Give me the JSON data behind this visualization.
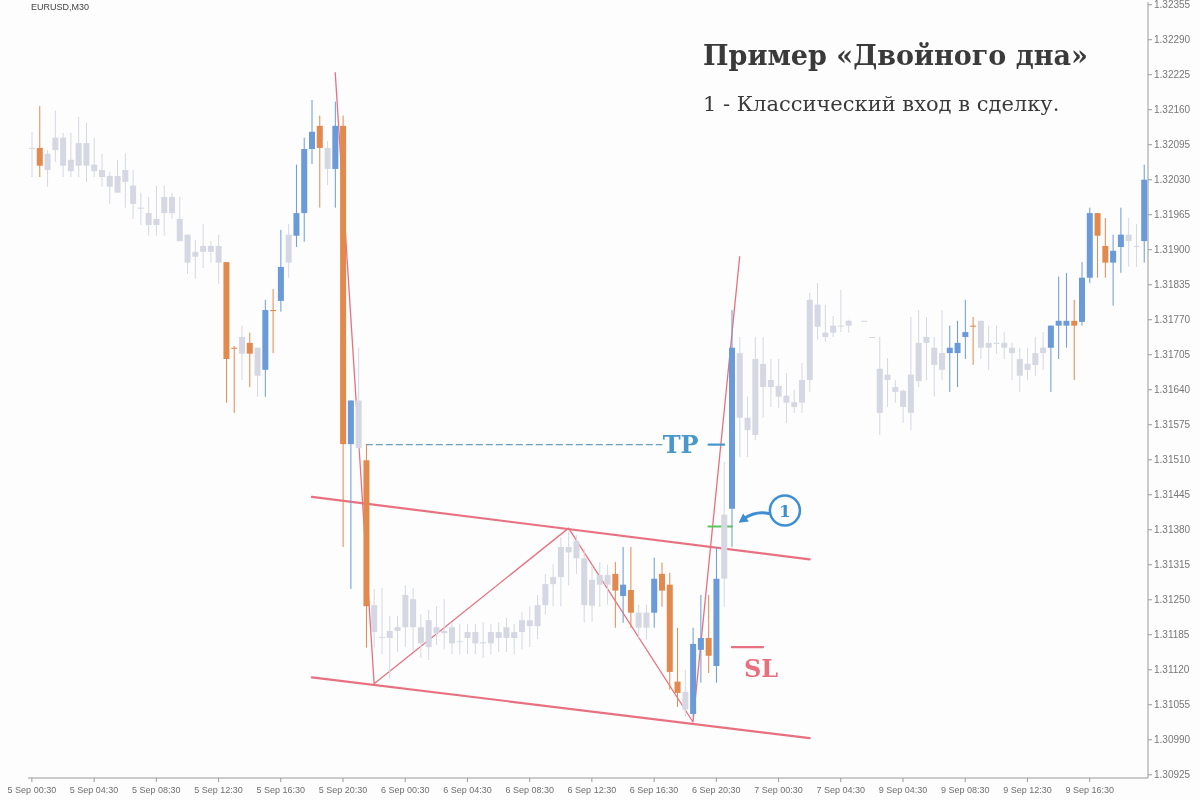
{
  "chart_data": {
    "type": "candlestick",
    "title": "Пример «Двойного дна»",
    "subtitle": "1 - Классический вход в сделку.",
    "categories": [
      "5 Sep 00:30",
      null,
      null,
      null,
      null,
      null,
      null,
      null,
      "5 Sep 04:30",
      null,
      null,
      null,
      null,
      null,
      null,
      null,
      "5 Sep 08:30",
      null,
      null,
      null,
      null,
      null,
      null,
      null,
      "5 Sep 12:30",
      null,
      null,
      null,
      null,
      null,
      null,
      null,
      "5 Sep 16:30",
      null,
      null,
      null,
      null,
      null,
      null,
      null,
      "5 Sep 20:30",
      null,
      null,
      null,
      null,
      null,
      null,
      null,
      "6 Sep 00:30",
      null,
      null,
      null,
      null,
      null,
      null,
      null,
      "6 Sep 04:30",
      null,
      null,
      null,
      null,
      null,
      null,
      null,
      "6 Sep 08:30",
      null,
      null,
      null,
      null,
      null,
      null,
      null,
      "6 Sep 12:30",
      null,
      null,
      null,
      null,
      null,
      null,
      null,
      "6 Sep 16:30",
      null,
      null,
      null,
      null,
      null,
      null,
      null,
      "6 Sep 20:30",
      null,
      null,
      null,
      null,
      null,
      null,
      null,
      "7 Sep 00:30",
      null,
      null,
      null,
      null,
      null,
      null,
      null,
      "7 Sep 04:30",
      null,
      null,
      null,
      null,
      null,
      null,
      null,
      "9 Sep 04:30",
      null,
      null,
      null,
      null,
      null,
      null,
      null,
      "9 Sep 08:30",
      null,
      null,
      null,
      null,
      null,
      null,
      null,
      "9 Sep 12:30",
      null,
      null,
      null,
      null,
      null,
      null,
      null,
      "9 Sep 16:30",
      null,
      null,
      null,
      null,
      null,
      null,
      null
    ],
    "ohlc": [
      [
        1.32089,
        1.32119,
        1.32035,
        1.32087
      ],
      [
        1.32089,
        1.32167,
        1.32035,
        1.32056
      ],
      [
        1.32078,
        1.32085,
        1.32017,
        1.32048
      ],
      [
        1.32108,
        1.32158,
        1.32063,
        1.32085
      ],
      [
        1.32108,
        1.32117,
        1.32035,
        1.32056
      ],
      [
        1.32067,
        1.32117,
        1.32035,
        1.32046
      ],
      [
        1.32098,
        1.32147,
        1.32035,
        1.32056
      ],
      [
        1.32098,
        1.32136,
        1.32026,
        1.32056
      ],
      [
        1.32058,
        1.32108,
        1.32035,
        1.32046
      ],
      [
        1.32048,
        1.32078,
        1.32017,
        1.32035
      ],
      [
        1.32037,
        1.32045,
        1.31985,
        1.32017
      ],
      [
        1.32037,
        1.32067,
        1.32006,
        1.32006
      ],
      [
        1.32048,
        1.32078,
        1.31978,
        1.32026
      ],
      [
        1.32019,
        1.32048,
        1.31957,
        1.31985
      ],
      [
        1.31978,
        1.32006,
        1.31946,
        1.31978
      ],
      [
        1.31968,
        1.31998,
        1.31926,
        1.31946
      ],
      [
        1.31957,
        1.32019,
        1.31926,
        1.31946
      ],
      [
        1.31998,
        1.32019,
        1.31926,
        1.31968
      ],
      [
        1.31998,
        1.32006,
        1.31957,
        1.31968
      ],
      [
        1.31957,
        1.31998,
        1.31915,
        1.31916
      ],
      [
        1.31928,
        1.31928,
        1.31855,
        1.31876
      ],
      [
        1.31896,
        1.31918,
        1.31846,
        1.31887
      ],
      [
        1.31907,
        1.31948,
        1.31866,
        1.31896
      ],
      [
        1.31907,
        1.31916,
        1.31876,
        1.31896
      ],
      [
        1.31907,
        1.31928,
        1.31837,
        1.31876
      ],
      [
        1.31877,
        1.31877,
        1.31616,
        1.31697
      ],
      [
        1.31718,
        1.31721,
        1.31597,
        1.31716
      ],
      [
        1.31738,
        1.31759,
        1.31658,
        1.31707
      ],
      [
        1.31727,
        1.31746,
        1.31645,
        1.31707
      ],
      [
        1.31718,
        1.31718,
        1.31627,
        1.31666
      ],
      [
        1.31677,
        1.31807,
        1.31627,
        1.31788
      ],
      [
        1.31788,
        1.31827,
        1.31708,
        1.31786
      ],
      [
        1.31805,
        1.31937,
        1.31785,
        1.31868
      ],
      [
        1.31928,
        1.31948,
        1.31848,
        1.31876
      ],
      [
        1.31926,
        1.32058,
        1.31905,
        1.31968
      ],
      [
        1.31968,
        1.32108,
        1.31915,
        1.32087
      ],
      [
        1.32087,
        1.32178,
        1.32059,
        1.32119
      ],
      [
        1.3213,
        1.32149,
        1.31978,
        1.32089
      ],
      [
        1.32089,
        1.32102,
        1.3202,
        1.3205
      ],
      [
        1.3205,
        1.32175,
        1.31978,
        1.3213
      ],
      [
        1.3213,
        1.32149,
        1.31348,
        1.31539
      ],
      [
        1.31539,
        1.3162,
        1.3127,
        1.3162
      ],
      [
        1.3162,
        1.31718,
        1.31522,
        1.31532
      ],
      [
        1.31509,
        1.31539,
        1.31161,
        1.31238
      ],
      [
        1.3124,
        1.3127,
        1.31162,
        1.3119
      ],
      [
        1.31181,
        1.31272,
        1.31149,
        1.31181
      ],
      [
        1.31192,
        1.3122,
        1.31103,
        1.31179
      ],
      [
        1.31199,
        1.3122,
        1.31153,
        1.31192
      ],
      [
        1.31259,
        1.31277,
        1.31162,
        1.31199
      ],
      [
        1.31251,
        1.31272,
        1.31153,
        1.31199
      ],
      [
        1.31199,
        1.31223,
        1.31142,
        1.31169
      ],
      [
        1.31212,
        1.31231,
        1.31138,
        1.31162
      ],
      [
        1.31199,
        1.31238,
        1.31166,
        1.31188
      ],
      [
        1.31192,
        1.31251,
        1.31158,
        1.31188
      ],
      [
        1.31199,
        1.31208,
        1.31149,
        1.31169
      ],
      [
        1.31173,
        1.31205,
        1.31149,
        1.31173
      ],
      [
        1.3119,
        1.31205,
        1.31149,
        1.31179
      ],
      [
        1.3119,
        1.31205,
        1.31149,
        1.31169
      ],
      [
        1.31171,
        1.31208,
        1.31142,
        1.31171
      ],
      [
        1.3119,
        1.31205,
        1.31149,
        1.31169
      ],
      [
        1.3119,
        1.31208,
        1.31153,
        1.31179
      ],
      [
        1.31199,
        1.31216,
        1.31153,
        1.31179
      ],
      [
        1.3119,
        1.31205,
        1.31149,
        1.31179
      ],
      [
        1.31212,
        1.31227,
        1.31158,
        1.3119
      ],
      [
        1.31212,
        1.31238,
        1.31162,
        1.31201
      ],
      [
        1.3124,
        1.31259,
        1.31177,
        1.31201
      ],
      [
        1.31279,
        1.31298,
        1.31223,
        1.3124
      ],
      [
        1.31292,
        1.31316,
        1.31238,
        1.31279
      ],
      [
        1.31348,
        1.31366,
        1.31238,
        1.31292
      ],
      [
        1.31348,
        1.31377,
        1.31277,
        1.31338
      ],
      [
        1.31359,
        1.3137,
        1.31298,
        1.31327
      ],
      [
        1.31327,
        1.31344,
        1.31208,
        1.3124
      ],
      [
        1.31287,
        1.31313,
        1.31209,
        1.31239
      ],
      [
        1.31296,
        1.3132,
        1.31237,
        1.31278
      ],
      [
        1.31296,
        1.31315,
        1.31241,
        1.31278
      ],
      [
        1.31298,
        1.3132,
        1.31198,
        1.31267
      ],
      [
        1.31257,
        1.31348,
        1.31207,
        1.31278
      ],
      [
        1.31268,
        1.31348,
        1.31198,
        1.31226
      ],
      [
        1.31226,
        1.31241,
        1.31176,
        1.31198
      ],
      [
        1.31226,
        1.31241,
        1.31176,
        1.31198
      ],
      [
        1.31226,
        1.31328,
        1.31198,
        1.31289
      ],
      [
        1.31298,
        1.31319,
        1.31237,
        1.31267
      ],
      [
        1.31278,
        1.313,
        1.31083,
        1.31116
      ],
      [
        1.31098,
        1.31198,
        1.31051,
        1.31077
      ],
      [
        1.31079,
        1.3112,
        1.31033,
        1.31046
      ],
      [
        1.31038,
        1.31198,
        1.31033,
        1.31168
      ],
      [
        1.31157,
        1.31259,
        1.31096,
        1.31179
      ],
      [
        1.31179,
        1.31259,
        1.31114,
        1.31146
      ],
      [
        1.31127,
        1.31348,
        1.31096,
        1.31289
      ],
      [
        1.31408,
        1.31506,
        1.31237,
        1.31289
      ],
      [
        1.31419,
        1.31788,
        1.31348,
        1.31718
      ],
      [
        1.31708,
        1.31738,
        1.31515,
        1.31588
      ],
      [
        1.31588,
        1.31627,
        1.31515,
        1.31565
      ],
      [
        1.31697,
        1.31738,
        1.31547,
        1.31556
      ],
      [
        1.31688,
        1.31738,
        1.31588,
        1.31645
      ],
      [
        1.31658,
        1.31697,
        1.31608,
        1.31645
      ],
      [
        1.31647,
        1.31697,
        1.31606,
        1.31627
      ],
      [
        1.31629,
        1.31671,
        1.31578,
        1.31616
      ],
      [
        1.31617,
        1.3164,
        1.31597,
        1.31608
      ],
      [
        1.31658,
        1.3169,
        1.31597,
        1.31616
      ],
      [
        1.31807,
        1.3182,
        1.31636,
        1.31658
      ],
      [
        1.31798,
        1.31838,
        1.31733,
        1.31757
      ],
      [
        1.31746,
        1.31798,
        1.31729,
        1.31738
      ],
      [
        1.31759,
        1.31777,
        1.31738,
        1.31746
      ],
      [
        1.31759,
        1.31825,
        1.31747,
        1.31759
      ],
      [
        1.31768,
        1.3177,
        1.31746,
        1.31759
      ],
      null,
      [
        1.31768,
        1.31768,
        1.31768,
        1.31768
      ],
      [
        1.31738,
        1.31738,
        1.31738,
        1.31738
      ],
      [
        1.31679,
        1.31738,
        1.31556,
        1.31597
      ],
      [
        1.31668,
        1.31699,
        1.31608,
        1.31658
      ],
      [
        1.31645,
        1.31658,
        1.31616,
        1.31636
      ],
      [
        1.31638,
        1.3164,
        1.31578,
        1.31608
      ],
      [
        1.31668,
        1.31775,
        1.31565,
        1.31597
      ],
      [
        1.31727,
        1.31788,
        1.31645,
        1.31656
      ],
      [
        1.31738,
        1.31775,
        1.31658,
        1.31727
      ],
      [
        1.31718,
        1.31738,
        1.31627,
        1.31686
      ],
      [
        1.31708,
        1.31788,
        1.31658,
        1.31677
      ],
      [
        1.31708,
        1.31759,
        1.31636,
        1.31718
      ],
      [
        1.31708,
        1.31768,
        1.31645,
        1.31727
      ],
      [
        1.31738,
        1.31807,
        1.31697,
        1.31747
      ],
      [
        1.31759,
        1.31775,
        1.31686,
        1.31757
      ],
      [
        1.31768,
        1.31768,
        1.31697,
        1.31718
      ],
      [
        1.31727,
        1.31759,
        1.31677,
        1.31718
      ],
      [
        1.31727,
        1.31759,
        1.31707,
        1.31727
      ],
      [
        1.31727,
        1.31747,
        1.31697,
        1.31718
      ],
      [
        1.31718,
        1.31727,
        1.31658,
        1.31708
      ],
      [
        1.31697,
        1.31718,
        1.31636,
        1.31666
      ],
      [
        1.31688,
        1.31718,
        1.31658,
        1.31677
      ],
      [
        1.31708,
        1.31738,
        1.31666,
        1.31686
      ],
      [
        1.31718,
        1.31747,
        1.31677,
        1.31708
      ],
      [
        1.31718,
        1.31759,
        1.31636,
        1.31759
      ],
      [
        1.31759,
        1.3185,
        1.31697,
        1.31768
      ],
      [
        1.31759,
        1.31857,
        1.31718,
        1.31768
      ],
      [
        1.31768,
        1.31807,
        1.31658,
        1.31759
      ],
      [
        1.31766,
        1.31877,
        1.31759,
        1.31848
      ],
      [
        1.31848,
        1.31978,
        1.31838,
        1.31968
      ],
      [
        1.31968,
        1.31968,
        1.31848,
        1.31926
      ],
      [
        1.31907,
        1.31959,
        1.31848,
        1.31876
      ],
      [
        1.31876,
        1.31928,
        1.31796,
        1.31898
      ],
      [
        1.31905,
        1.31978,
        1.31857,
        1.31928
      ],
      [
        1.31928,
        1.31959,
        1.31868,
        1.31916
      ],
      [
        1.31907,
        1.31948,
        1.31868,
        1.31907
      ],
      [
        1.31916,
        1.32058,
        1.31876,
        1.3203
      ]
    ],
    "colors": [
      "#d5d8e2",
      "#e2894e",
      "#d5d8e2",
      "#d5d8e2",
      "#d5d8e2",
      "#d5d8e2",
      "#d5d8e2",
      "#d5d8e2",
      "#d5d8e2",
      "#d5d8e2",
      "#d5d8e2",
      "#d5d8e2",
      "#d5d8e2",
      "#d5d8e2",
      "#d5d8e2",
      "#d5d8e2",
      "#d5d8e2",
      "#d5d8e2",
      "#d5d8e2",
      "#d5d8e2",
      "#d5d8e2",
      "#d5d8e2",
      "#d5d8e2",
      "#d5d8e2",
      "#d5d8e2",
      "#e2894e",
      "#e2894e",
      "#d5d8e2",
      "#e2894e",
      "#d5d8e2",
      "#6a9ad7",
      "#e2894e",
      "#6a9ad7",
      "#d5d8e2",
      "#6a9ad7",
      "#6a9ad7",
      "#6a9ad7",
      "#e2894e",
      "#d5d8e2",
      "#6a9ad7",
      "#e2894e",
      "#6a9ad7",
      "#d5d8e2",
      "#e2894e",
      "#d5d8e2",
      "#d5d8e2",
      "#d5d8e2",
      "#d5d8e2",
      "#d5d8e2",
      "#d5d8e2",
      "#d5d8e2",
      "#d5d8e2",
      "#d5d8e2",
      "#d5d8e2",
      "#d5d8e2",
      "#d5d8e2",
      "#d5d8e2",
      "#d5d8e2",
      "#d5d8e2",
      "#d5d8e2",
      "#d5d8e2",
      "#d5d8e2",
      "#d5d8e2",
      "#d5d8e2",
      "#d5d8e2",
      "#d5d8e2",
      "#d5d8e2",
      "#d5d8e2",
      "#d5d8e2",
      "#d5d8e2",
      "#d5d8e2",
      "#d5d8e2",
      "#d5d8e2",
      "#d5d8e2",
      "#d5d8e2",
      "#e2894e",
      "#6a9ad7",
      "#e2894e",
      "#d5d8e2",
      "#d5d8e2",
      "#6a9ad7",
      "#e2894e",
      "#e2894e",
      "#e2894e",
      "#d5d8e2",
      "#6a9ad7",
      "#6a9ad7",
      "#e2894e",
      "#6a9ad7",
      "#d5d8e2",
      "#6a9ad7",
      "#d5d8e2",
      "#d5d8e2",
      "#d5d8e2",
      "#d5d8e2",
      "#d5d8e2",
      "#d5d8e2",
      "#d5d8e2",
      "#d5d8e2",
      "#d5d8e2",
      "#d5d8e2",
      "#d5d8e2",
      "#d5d8e2",
      "#d5d8e2",
      "#d5d8e2",
      "#d5d8e2",
      null,
      "#d5d8e2",
      "#d5d8e2",
      "#d5d8e2",
      "#d5d8e2",
      "#d5d8e2",
      "#d5d8e2",
      "#d5d8e2",
      "#d5d8e2",
      "#d5d8e2",
      "#d5d8e2",
      "#d5d8e2",
      "#6a9ad7",
      "#6a9ad7",
      "#6a9ad7",
      "#e2894e",
      "#d5d8e2",
      "#d5d8e2",
      "#d5d8e2",
      "#d5d8e2",
      "#d5d8e2",
      "#d5d8e2",
      "#d5d8e2",
      "#d5d8e2",
      "#d5d8e2",
      "#6a9ad7",
      "#6a9ad7",
      "#6a9ad7",
      "#e2894e",
      "#6a9ad7",
      "#6a9ad7",
      "#e2894e",
      "#e2894e",
      "#6a9ad7",
      "#6a9ad7",
      "#d5d8e2",
      "#d5d8e2",
      "#6a9ad7"
    ],
    "series": [
      {
        "type": "line",
        "color": "#e8707f",
        "values": [
          null,
          null,
          null,
          null,
          null,
          null,
          null,
          null,
          null,
          null,
          null,
          null,
          null,
          null,
          null,
          null,
          null,
          null,
          null,
          null,
          null,
          null,
          null,
          null,
          null,
          null,
          null,
          null,
          null,
          null,
          null,
          null,
          null,
          null,
          null,
          null,
          1.31441,
          null,
          null,
          null,
          null,
          null,
          null,
          null,
          null,
          null,
          null,
          null,
          null,
          null,
          null,
          null,
          null,
          null,
          null,
          null,
          null,
          null,
          null,
          null,
          null,
          null,
          null,
          null,
          null,
          null,
          null,
          null,
          null,
          null,
          null,
          null,
          null,
          null,
          null,
          null,
          null,
          null,
          null,
          null,
          null,
          null,
          null,
          null,
          null,
          null,
          null,
          null,
          null,
          null,
          null,
          null,
          null,
          null,
          null,
          null,
          null,
          null,
          null,
          null,
          1.31325,
          null,
          null,
          null,
          null,
          null,
          null,
          null,
          null,
          null,
          null,
          null,
          null,
          null,
          null,
          null,
          null,
          null,
          null,
          null,
          null,
          null,
          null,
          null,
          null,
          null,
          null,
          null,
          null,
          null,
          null,
          null,
          null,
          null,
          null,
          null,
          null,
          null,
          null,
          null,
          null,
          null,
          null,
          null
        ]
      },
      {
        "type": "line",
        "color": "#e8707f",
        "values": [
          null,
          null,
          null,
          null,
          null,
          null,
          null,
          null,
          null,
          null,
          null,
          null,
          null,
          null,
          null,
          null,
          null,
          null,
          null,
          null,
          null,
          null,
          null,
          null,
          null,
          null,
          null,
          null,
          null,
          null,
          null,
          null,
          null,
          null,
          null,
          null,
          1.31106,
          null,
          null,
          null,
          null,
          null,
          null,
          null,
          null,
          null,
          null,
          null,
          null,
          null,
          null,
          null,
          null,
          null,
          null,
          null,
          null,
          null,
          null,
          null,
          null,
          null,
          null,
          null,
          null,
          null,
          null,
          null,
          null,
          null,
          null,
          null,
          null,
          null,
          null,
          null,
          null,
          null,
          null,
          null,
          null,
          null,
          null,
          null,
          null,
          null,
          null,
          null,
          null,
          null,
          null,
          null,
          null,
          null,
          null,
          null,
          null,
          null,
          null,
          null,
          1.30993,
          null,
          null,
          null,
          null,
          null,
          null,
          null,
          null,
          null,
          null,
          null,
          null,
          null,
          null,
          null,
          null,
          null,
          null,
          null,
          null,
          null,
          null,
          null,
          null,
          null,
          null,
          null,
          null,
          null,
          null,
          null,
          null,
          null,
          null,
          null,
          null,
          null,
          null,
          null,
          null,
          null,
          null,
          null
        ]
      },
      {
        "type": "line",
        "color": "#e8707f",
        "values": [
          null,
          null,
          null,
          null,
          null,
          null,
          null,
          null,
          null,
          null,
          null,
          null,
          null,
          null,
          null,
          null,
          null,
          null,
          null,
          null,
          null,
          null,
          null,
          null,
          null,
          null,
          null,
          null,
          null,
          null,
          null,
          null,
          null,
          null,
          null,
          null,
          null,
          null,
          null,
          1.32229,
          null,
          null,
          null,
          null,
          1.31094,
          null,
          null,
          null,
          null,
          null,
          null,
          null,
          null,
          null,
          null,
          null,
          null,
          null,
          null,
          null,
          null,
          null,
          null,
          null,
          null,
          null,
          null,
          null,
          null,
          1.31383,
          null,
          null,
          null,
          null,
          null,
          null,
          null,
          null,
          null,
          null,
          null,
          null,
          null,
          null,
          null,
          1.31023,
          null,
          null,
          null,
          null,
          null,
          1.31887,
          null,
          null,
          null,
          null,
          null,
          null,
          null,
          null,
          null,
          null,
          null,
          null,
          null,
          null,
          null,
          null,
          null,
          null,
          null,
          null,
          null,
          null,
          null,
          null,
          null,
          null,
          null,
          null,
          null,
          null,
          null,
          null,
          null,
          null,
          null,
          null,
          null,
          null,
          null,
          null,
          null,
          null,
          null,
          null,
          null,
          null,
          null,
          null,
          null,
          null,
          null,
          null
        ]
      },
      {
        "type": "line",
        "color": "#6a9fbf",
        "line_style": "dashed",
        "values": [
          null,
          null,
          null,
          null,
          null,
          null,
          null,
          null,
          null,
          null,
          null,
          null,
          null,
          null,
          null,
          null,
          null,
          null,
          null,
          null,
          null,
          null,
          null,
          null,
          null,
          null,
          null,
          null,
          null,
          null,
          null,
          null,
          null,
          null,
          null,
          null,
          null,
          null,
          null,
          null,
          null,
          null,
          null,
          1.31538,
          null,
          null,
          null,
          null,
          null,
          null,
          null,
          null,
          null,
          null,
          null,
          null,
          null,
          null,
          null,
          null,
          null,
          null,
          null,
          null,
          null,
          null,
          null,
          null,
          null,
          null,
          null,
          null,
          null,
          null,
          null,
          null,
          null,
          null,
          null,
          null,
          null,
          1.31538,
          null,
          null,
          null,
          null,
          null,
          null,
          null,
          null,
          null,
          null,
          null,
          null,
          null,
          null,
          null,
          null,
          null,
          null,
          null,
          null,
          null,
          null,
          null,
          null,
          null,
          null,
          null,
          null,
          null,
          null,
          null,
          null,
          null,
          null,
          null,
          null,
          null,
          null,
          null,
          null,
          null,
          null,
          null,
          null,
          null,
          null,
          null,
          null,
          null,
          null,
          null,
          null,
          null,
          null,
          null,
          null,
          null,
          null,
          null,
          null,
          null,
          null
        ]
      },
      {
        "type": "line",
        "name": "TP",
        "color": "#4a97cc",
        "values": [
          null,
          null,
          null,
          null,
          null,
          null,
          null,
          null,
          null,
          null,
          null,
          null,
          null,
          null,
          null,
          null,
          null,
          null,
          null,
          null,
          null,
          null,
          null,
          null,
          null,
          null,
          null,
          null,
          null,
          null,
          null,
          null,
          null,
          null,
          null,
          null,
          null,
          null,
          null,
          null,
          null,
          null,
          null,
          null,
          null,
          null,
          null,
          null,
          null,
          null,
          null,
          null,
          null,
          null,
          null,
          null,
          null,
          null,
          null,
          null,
          null,
          null,
          null,
          null,
          null,
          null,
          null,
          null,
          null,
          null,
          null,
          null,
          null,
          null,
          null,
          null,
          null,
          null,
          null,
          null,
          null,
          null,
          null,
          null,
          null,
          null,
          null,
          1.31538,
          null,
          1.31538,
          null,
          null,
          null,
          null,
          null,
          null,
          null,
          null,
          null,
          null,
          null,
          null,
          null,
          null,
          null,
          null,
          null,
          null,
          null,
          null,
          null,
          null,
          null,
          null,
          null,
          null,
          null,
          null,
          null,
          null,
          null,
          null,
          null,
          null,
          null,
          null,
          null,
          null,
          null,
          null,
          null,
          null,
          null,
          null,
          null,
          null,
          null,
          null,
          null,
          null,
          null,
          null,
          null,
          null
        ]
      },
      {
        "type": "line",
        "color": "#5dc65d",
        "values": [
          null,
          null,
          null,
          null,
          null,
          null,
          null,
          null,
          null,
          null,
          null,
          null,
          null,
          null,
          null,
          null,
          null,
          null,
          null,
          null,
          null,
          null,
          null,
          null,
          null,
          null,
          null,
          null,
          null,
          null,
          null,
          null,
          null,
          null,
          null,
          null,
          null,
          null,
          null,
          null,
          null,
          null,
          null,
          null,
          null,
          null,
          null,
          null,
          null,
          null,
          null,
          null,
          null,
          null,
          null,
          null,
          null,
          null,
          null,
          null,
          null,
          null,
          null,
          null,
          null,
          null,
          null,
          null,
          null,
          null,
          null,
          null,
          null,
          null,
          null,
          null,
          null,
          null,
          null,
          null,
          null,
          null,
          null,
          null,
          null,
          null,
          null,
          1.31386,
          null,
          null,
          1.31386,
          null,
          null,
          null,
          null,
          null,
          null,
          null,
          null,
          null,
          null,
          null,
          null,
          null,
          null,
          null,
          null,
          null,
          null,
          null,
          null,
          null,
          null,
          null,
          null,
          null,
          null,
          null,
          null,
          null,
          null,
          null,
          null,
          null,
          null,
          null,
          null,
          null,
          null,
          null,
          null,
          null,
          null,
          null,
          null,
          null,
          null,
          null,
          null,
          null,
          null,
          null,
          null,
          null
        ]
      },
      {
        "type": "line",
        "name": "SL",
        "color": "#e8707f",
        "values": [
          null,
          null,
          null,
          null,
          null,
          null,
          null,
          null,
          null,
          null,
          null,
          null,
          null,
          null,
          null,
          null,
          null,
          null,
          null,
          null,
          null,
          null,
          null,
          null,
          null,
          null,
          null,
          null,
          null,
          null,
          null,
          null,
          null,
          null,
          null,
          null,
          null,
          null,
          null,
          null,
          null,
          null,
          null,
          null,
          null,
          null,
          null,
          null,
          null,
          null,
          null,
          null,
          null,
          null,
          null,
          null,
          null,
          null,
          null,
          null,
          null,
          null,
          null,
          null,
          null,
          null,
          null,
          null,
          null,
          null,
          null,
          null,
          null,
          null,
          null,
          null,
          null,
          null,
          null,
          null,
          null,
          null,
          null,
          null,
          null,
          null,
          null,
          null,
          null,
          null,
          1.31162,
          null,
          null,
          null,
          1.31162,
          null,
          null,
          null,
          null,
          null,
          null,
          null,
          null,
          null,
          null,
          null,
          null,
          null,
          null,
          null,
          null,
          null,
          null,
          null,
          null,
          null,
          null,
          null,
          null,
          null,
          null,
          null,
          null,
          null,
          null,
          null,
          null,
          null,
          null,
          null,
          null,
          null,
          null,
          null,
          null,
          null,
          null,
          null,
          null,
          null,
          null,
          null,
          null,
          null
        ]
      }
    ],
    "ylim": [
      1.30919,
      1.3236
    ],
    "yticks": [
      1.30925,
      {
        "value": 1.3099,
        "label": "1.30990"
      },
      1.31055,
      {
        "value": 1.3112,
        "label": "1.31120"
      },
      1.31185,
      {
        "value": 1.3125,
        "label": "1.31250"
      },
      1.31315,
      {
        "value": 1.3138,
        "label": "1.31380"
      },
      1.31445,
      {
        "value": 1.3151,
        "label": "1.31510"
      },
      1.31575,
      {
        "value": 1.3164,
        "label": "1.31640"
      },
      1.31705,
      {
        "value": 1.3177,
        "label": "1.31770"
      },
      1.31835,
      {
        "value": 1.319,
        "label": "1.31900"
      },
      1.31965,
      {
        "value": 1.3203,
        "label": "1.32030"
      },
      1.32095,
      {
        "value": 1.3216,
        "label": "1.32160"
      },
      1.32225,
      {
        "value": 1.3229,
        "label": "1.32290"
      },
      1.32355
    ],
    "annotations": [
      "EURUSD,M30",
      "1"
    ]
  }
}
